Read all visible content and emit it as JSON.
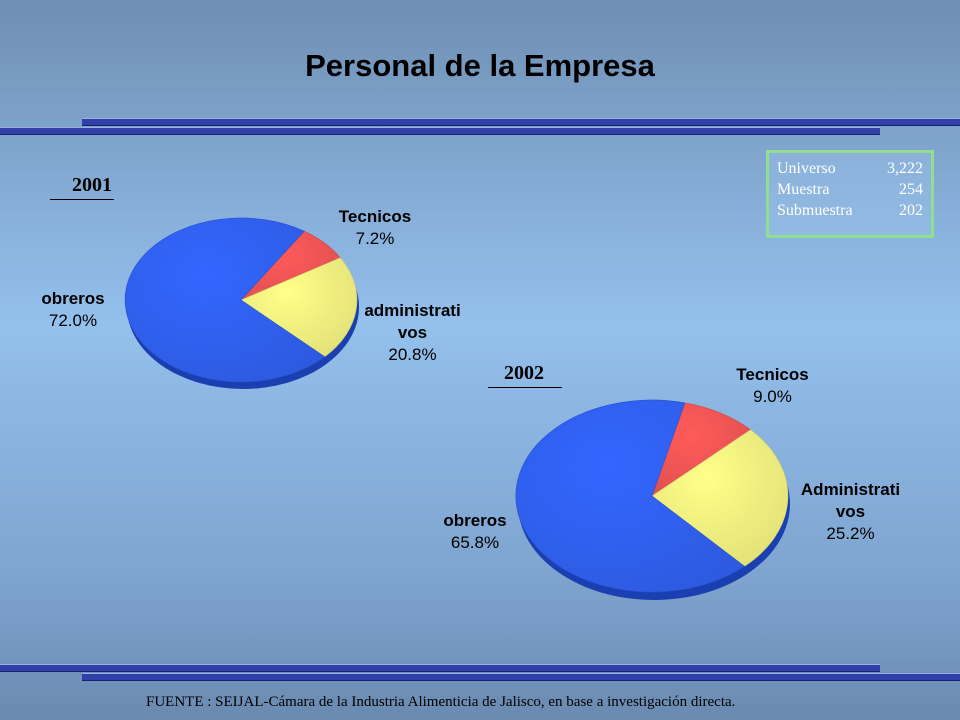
{
  "title": "Personal de la Empresa",
  "sample_box": [
    {
      "label": "Universo",
      "value": "3,222"
    },
    {
      "label": "Muestra",
      "value": "254"
    },
    {
      "label": "Submuestra",
      "value": "202"
    }
  ],
  "source": "FUENTE : SEIJAL-Cámara de la Industria Alimenticia de Jalisco,  en base a investigación directa.",
  "colors": {
    "obreros": "#3366ff",
    "tecnicos": "#ff5a5a",
    "administrativos": "#ffff88"
  },
  "chart_data": [
    {
      "type": "pie",
      "title": "2001",
      "slices": [
        {
          "label": "Tecnicos",
          "label_lines": [
            "Tecnicos"
          ],
          "value": 7.2,
          "pct_text": "7.2%"
        },
        {
          "label": "administrativos",
          "label_lines": [
            "administrati",
            "vos"
          ],
          "value": 20.8,
          "pct_text": "20.8%"
        },
        {
          "label": "obreros",
          "label_lines": [
            "obreros"
          ],
          "value": 72.0,
          "pct_text": "72.0%"
        }
      ]
    },
    {
      "type": "pie",
      "title": "2002",
      "slices": [
        {
          "label": "Tecnicos",
          "label_lines": [
            "Tecnicos"
          ],
          "value": 9.0,
          "pct_text": "9.0%"
        },
        {
          "label": "Administrativos",
          "label_lines": [
            "Administrati",
            "vos"
          ],
          "value": 25.2,
          "pct_text": "25.2%"
        },
        {
          "label": "obreros",
          "label_lines": [
            "obreros"
          ],
          "value": 65.8,
          "pct_text": "65.8%"
        }
      ]
    }
  ]
}
